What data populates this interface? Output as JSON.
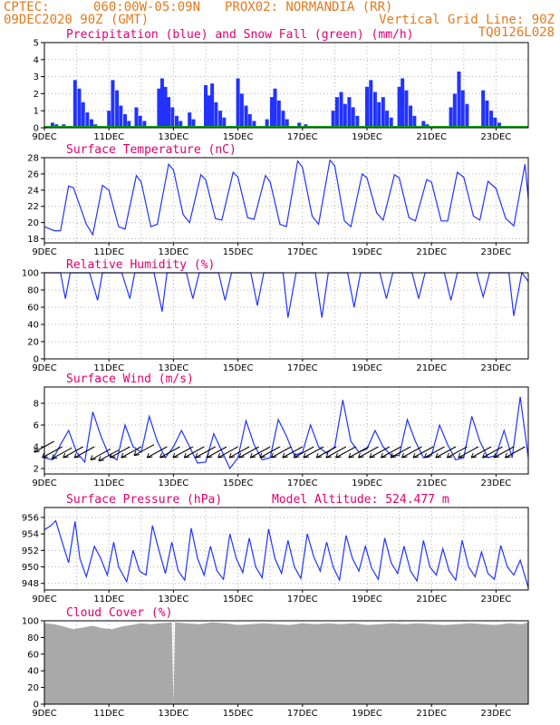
{
  "header": {
    "line1_left": "CPTEC:",
    "line1_coords": "060:00W-05:09N",
    "line1_station": "PROX02: NORMANDIA (RR)",
    "line2_left": "09DEC2020 90Z (GMT)",
    "line2_right": "Vertical Grid Line: 90Z",
    "line3_right": "TQ0126L028"
  },
  "colors": {
    "header": "#e07a1f",
    "title": "#e0006e",
    "line": "#2233ff",
    "snow": "#00aa00",
    "cloud": "#a9a9a9"
  },
  "chart_data": [
    {
      "id": "precip",
      "type": "bar",
      "title": "Precipitation (blue) and Snow Fall (green) (mm/h)",
      "ylim": [
        0,
        5
      ],
      "yticks": [
        "0",
        "1",
        "2",
        "3",
        "4",
        "5"
      ],
      "xticks": [
        "9DEC",
        "11DEC",
        "13DEC",
        "15DEC",
        "17DEC",
        "19DEC",
        "21DEC",
        "23DEC"
      ],
      "x_unit": "days since 09DEC 09Z (3-hourly)",
      "bars": [
        {
          "x": 0.25,
          "v": 0.3
        },
        {
          "x": 0.375,
          "v": 0.2
        },
        {
          "x": 0.6,
          "v": 0.2
        },
        {
          "x": 0.95,
          "v": 2.8
        },
        {
          "x": 1.08,
          "v": 2.3
        },
        {
          "x": 1.2,
          "v": 1.5
        },
        {
          "x": 1.33,
          "v": 0.9
        },
        {
          "x": 1.46,
          "v": 0.5
        },
        {
          "x": 1.58,
          "v": 0.2
        },
        {
          "x": 2.0,
          "v": 1.0
        },
        {
          "x": 2.12,
          "v": 2.8
        },
        {
          "x": 2.25,
          "v": 2.2
        },
        {
          "x": 2.37,
          "v": 1.3
        },
        {
          "x": 2.5,
          "v": 0.8
        },
        {
          "x": 2.62,
          "v": 0.4
        },
        {
          "x": 2.85,
          "v": 1.2
        },
        {
          "x": 2.97,
          "v": 0.7
        },
        {
          "x": 3.1,
          "v": 0.4
        },
        {
          "x": 3.55,
          "v": 2.3
        },
        {
          "x": 3.65,
          "v": 2.9
        },
        {
          "x": 3.75,
          "v": 2.4
        },
        {
          "x": 3.85,
          "v": 1.8
        },
        {
          "x": 3.97,
          "v": 1.2
        },
        {
          "x": 4.1,
          "v": 0.7
        },
        {
          "x": 4.22,
          "v": 0.4
        },
        {
          "x": 4.5,
          "v": 0.9
        },
        {
          "x": 4.62,
          "v": 0.5
        },
        {
          "x": 5.0,
          "v": 2.5
        },
        {
          "x": 5.1,
          "v": 1.9
        },
        {
          "x": 5.2,
          "v": 2.6
        },
        {
          "x": 5.32,
          "v": 1.5
        },
        {
          "x": 5.45,
          "v": 1.0
        },
        {
          "x": 5.57,
          "v": 0.6
        },
        {
          "x": 6.0,
          "v": 2.9
        },
        {
          "x": 6.12,
          "v": 2.0
        },
        {
          "x": 6.25,
          "v": 1.3
        },
        {
          "x": 6.37,
          "v": 0.8
        },
        {
          "x": 6.5,
          "v": 0.4
        },
        {
          "x": 6.9,
          "v": 0.5
        },
        {
          "x": 7.05,
          "v": 1.8
        },
        {
          "x": 7.15,
          "v": 2.3
        },
        {
          "x": 7.27,
          "v": 1.6
        },
        {
          "x": 7.4,
          "v": 1.0
        },
        {
          "x": 7.52,
          "v": 0.5
        },
        {
          "x": 7.9,
          "v": 0.3
        },
        {
          "x": 8.1,
          "v": 0.2
        },
        {
          "x": 8.95,
          "v": 1.0
        },
        {
          "x": 9.07,
          "v": 1.8
        },
        {
          "x": 9.2,
          "v": 2.1
        },
        {
          "x": 9.32,
          "v": 1.4
        },
        {
          "x": 9.45,
          "v": 1.8
        },
        {
          "x": 9.57,
          "v": 1.2
        },
        {
          "x": 9.7,
          "v": 0.7
        },
        {
          "x": 10.0,
          "v": 2.4
        },
        {
          "x": 10.12,
          "v": 2.8
        },
        {
          "x": 10.25,
          "v": 2.1
        },
        {
          "x": 10.37,
          "v": 1.5
        },
        {
          "x": 10.5,
          "v": 1.8
        },
        {
          "x": 10.62,
          "v": 1.0
        },
        {
          "x": 10.75,
          "v": 0.6
        },
        {
          "x": 11.0,
          "v": 2.4
        },
        {
          "x": 11.1,
          "v": 2.9
        },
        {
          "x": 11.22,
          "v": 2.2
        },
        {
          "x": 11.35,
          "v": 1.3
        },
        {
          "x": 11.47,
          "v": 0.7
        },
        {
          "x": 11.75,
          "v": 0.4
        },
        {
          "x": 11.87,
          "v": 0.2
        },
        {
          "x": 12.6,
          "v": 1.2
        },
        {
          "x": 12.72,
          "v": 2.0
        },
        {
          "x": 12.85,
          "v": 3.3
        },
        {
          "x": 12.97,
          "v": 2.2
        },
        {
          "x": 13.1,
          "v": 1.4
        },
        {
          "x": 13.6,
          "v": 2.2
        },
        {
          "x": 13.72,
          "v": 1.6
        },
        {
          "x": 13.85,
          "v": 1.0
        },
        {
          "x": 13.97,
          "v": 0.6
        },
        {
          "x": 14.1,
          "v": 0.3
        }
      ]
    },
    {
      "id": "temp",
      "type": "line",
      "title": "Surface Temperature (nC)",
      "ylim": [
        17.5,
        28
      ],
      "yticks": [
        "18",
        "20",
        "22",
        "24",
        "26",
        "28"
      ],
      "xticks": [
        "9DEC",
        "11DEC",
        "13DEC",
        "15DEC",
        "17DEC",
        "19DEC",
        "21DEC",
        "23DEC"
      ],
      "x": [
        0,
        0.3,
        0.5,
        0.75,
        0.9,
        1.3,
        1.5,
        1.8,
        2.0,
        2.3,
        2.5,
        2.85,
        3.0,
        3.3,
        3.5,
        3.85,
        4.0,
        4.3,
        4.5,
        4.85,
        5.0,
        5.3,
        5.5,
        5.85,
        6.0,
        6.3,
        6.5,
        6.85,
        7.0,
        7.3,
        7.5,
        7.85,
        8.0,
        8.3,
        8.5,
        8.85,
        9.0,
        9.3,
        9.5,
        9.85,
        10.0,
        10.3,
        10.5,
        10.85,
        11.0,
        11.3,
        11.5,
        11.85,
        12.0,
        12.3,
        12.5,
        12.8,
        13.0,
        13.3,
        13.5,
        13.75,
        14.0,
        14.3,
        14.55,
        14.9,
        15.0
      ],
      "values": [
        19.5,
        19.0,
        19.0,
        24.5,
        24.3,
        19.8,
        18.5,
        24.6,
        24.0,
        19.5,
        19.2,
        25.8,
        25.0,
        19.5,
        19.8,
        27.2,
        26.5,
        21.0,
        20.0,
        25.9,
        25.3,
        20.5,
        20.3,
        26.2,
        25.6,
        20.6,
        20.4,
        25.8,
        25.0,
        19.8,
        19.5,
        27.6,
        26.8,
        20.8,
        19.8,
        27.7,
        27.0,
        20.2,
        19.5,
        26.0,
        25.5,
        21.2,
        20.3,
        25.9,
        25.5,
        20.6,
        20.2,
        25.3,
        25.0,
        20.2,
        20.2,
        26.2,
        25.6,
        20.8,
        20.3,
        25.1,
        24.2,
        20.5,
        19.6,
        27.2,
        23.0
      ]
    },
    {
      "id": "rh",
      "type": "line",
      "title": "Relative Humidity (%)",
      "ylim": [
        0,
        100
      ],
      "yticks": [
        "0",
        "20",
        "40",
        "60",
        "80",
        "100"
      ],
      "xticks": [
        "9DEC",
        "11DEC",
        "13DEC",
        "15DEC",
        "17DEC",
        "19DEC",
        "21DEC",
        "23DEC"
      ],
      "x": [
        0,
        0.5,
        0.65,
        0.8,
        1.0,
        1.4,
        1.65,
        1.8,
        2.0,
        2.4,
        2.65,
        2.8,
        3.0,
        3.4,
        3.65,
        3.8,
        4.0,
        4.4,
        4.6,
        4.8,
        5.0,
        5.4,
        5.6,
        5.8,
        6.0,
        6.4,
        6.6,
        6.8,
        7.0,
        7.4,
        7.55,
        7.8,
        8.0,
        8.4,
        8.6,
        8.8,
        9.0,
        9.4,
        9.6,
        9.8,
        10.0,
        10.4,
        10.6,
        10.8,
        11.0,
        11.4,
        11.6,
        11.8,
        12.0,
        12.4,
        12.6,
        12.8,
        13.0,
        13.4,
        13.6,
        13.8,
        14.0,
        14.4,
        14.55,
        14.8,
        15.0
      ],
      "values": [
        100,
        100,
        70,
        100,
        100,
        100,
        68,
        100,
        100,
        100,
        70,
        100,
        100,
        100,
        55,
        100,
        100,
        100,
        70,
        100,
        100,
        100,
        68,
        100,
        100,
        100,
        62,
        100,
        100,
        100,
        48,
        100,
        100,
        100,
        48,
        100,
        100,
        100,
        60,
        100,
        100,
        100,
        70,
        100,
        100,
        100,
        70,
        100,
        100,
        100,
        68,
        100,
        100,
        100,
        72,
        100,
        100,
        100,
        50,
        100,
        90
      ]
    },
    {
      "id": "wind",
      "type": "line",
      "title": "Surface Wind (m/s)",
      "ylim": [
        1.5,
        9.5
      ],
      "yticks": [
        "2",
        "4",
        "6",
        "8"
      ],
      "xticks": [
        "9DEC",
        "11DEC",
        "13DEC",
        "15DEC",
        "17DEC",
        "19DEC",
        "21DEC",
        "23DEC"
      ],
      "x": [
        0,
        0.25,
        0.5,
        0.75,
        1.0,
        1.25,
        1.5,
        1.75,
        2.0,
        2.25,
        2.5,
        2.75,
        3.0,
        3.25,
        3.5,
        3.75,
        4.0,
        4.25,
        4.5,
        4.75,
        5.0,
        5.25,
        5.5,
        5.75,
        6.0,
        6.25,
        6.5,
        6.75,
        7.0,
        7.25,
        7.5,
        7.75,
        8.0,
        8.25,
        8.5,
        8.75,
        9.0,
        9.25,
        9.5,
        9.75,
        10.0,
        10.25,
        10.5,
        10.75,
        11.0,
        11.25,
        11.5,
        11.75,
        12.0,
        12.25,
        12.5,
        12.75,
        13.0,
        13.25,
        13.5,
        13.75,
        14.0,
        14.25,
        14.5,
        14.75,
        15.0
      ],
      "values": [
        3.0,
        2.8,
        4.2,
        5.5,
        3.5,
        2.6,
        7.2,
        5.0,
        3.2,
        2.8,
        6.0,
        4.0,
        3.5,
        6.8,
        4.5,
        3.0,
        4.0,
        5.5,
        4.0,
        2.5,
        2.6,
        5.2,
        3.6,
        2.0,
        3.0,
        6.4,
        4.2,
        2.8,
        3.0,
        6.5,
        5.0,
        3.2,
        3.5,
        6.0,
        4.0,
        3.4,
        4.0,
        8.3,
        4.5,
        3.5,
        3.8,
        5.5,
        4.0,
        3.2,
        3.2,
        6.5,
        4.5,
        3.0,
        3.2,
        6.0,
        4.2,
        2.8,
        3.0,
        6.8,
        4.5,
        3.0,
        3.2,
        5.5,
        3.0,
        8.6,
        3.0
      ],
      "arrows_x": [
        0.3,
        0.55,
        0.85,
        1.2,
        1.55,
        2.05,
        2.3,
        2.65,
        3.0,
        3.4,
        3.8,
        4.2,
        4.6,
        4.95,
        5.3,
        5.65,
        6.0,
        6.35,
        6.65,
        7.0,
        7.3,
        7.65,
        8.0,
        8.35,
        8.65,
        9.05,
        9.35,
        9.65,
        10.05,
        10.35,
        10.7,
        11.05,
        11.35,
        11.7,
        12.05,
        12.4,
        12.75,
        13.1,
        13.45,
        13.85,
        14.2,
        14.55,
        14.9
      ],
      "arrows_y": [
        4.5,
        4.0,
        3.9,
        4.0,
        4.0,
        3.8,
        3.7,
        4.0,
        4.0,
        4.2,
        4.0,
        4.0,
        4.0,
        4.0,
        4.0,
        4.0,
        4.0,
        4.0,
        4.0,
        4.0,
        4.0,
        4.0,
        4.0,
        4.0,
        4.0,
        4.0,
        4.0,
        4.0,
        4.0,
        4.0,
        4.0,
        4.0,
        4.0,
        4.0,
        4.0,
        4.0,
        4.0,
        4.0,
        4.0,
        4.0,
        4.0,
        4.0,
        4.0
      ]
    },
    {
      "id": "pres",
      "type": "line",
      "title": "Surface Pressure (hPa)",
      "annotation": "Model Altitude: 524.477 m",
      "ylim": [
        947.2,
        957.2
      ],
      "yticks": [
        "948",
        "950",
        "952",
        "954",
        "956"
      ],
      "xticks": [
        "9DEC",
        "11DEC",
        "13DEC",
        "15DEC",
        "17DEC",
        "19DEC",
        "21DEC",
        "23DEC"
      ],
      "x": [
        0,
        0.2,
        0.35,
        0.55,
        0.75,
        0.95,
        1.1,
        1.3,
        1.55,
        1.75,
        1.95,
        2.15,
        2.3,
        2.55,
        2.75,
        2.95,
        3.15,
        3.35,
        3.55,
        3.75,
        3.95,
        4.15,
        4.35,
        4.55,
        4.75,
        4.95,
        5.15,
        5.35,
        5.55,
        5.75,
        5.95,
        6.15,
        6.35,
        6.55,
        6.75,
        6.95,
        7.15,
        7.35,
        7.55,
        7.75,
        7.95,
        8.15,
        8.35,
        8.55,
        8.75,
        8.95,
        9.15,
        9.35,
        9.55,
        9.75,
        9.95,
        10.15,
        10.35,
        10.55,
        10.75,
        10.95,
        11.15,
        11.35,
        11.55,
        11.75,
        11.95,
        12.15,
        12.35,
        12.55,
        12.75,
        12.95,
        13.15,
        13.35,
        13.55,
        13.75,
        13.95,
        14.15,
        14.35,
        14.55,
        14.75,
        15.0
      ],
      "values": [
        954.5,
        955.0,
        955.6,
        953.0,
        950.5,
        955.5,
        951.0,
        948.8,
        952.5,
        951.0,
        949.0,
        953.0,
        950.0,
        948.2,
        952.0,
        949.5,
        949.0,
        955.0,
        952.0,
        949.2,
        953.0,
        949.5,
        948.4,
        954.7,
        951.0,
        949.0,
        952.5,
        949.5,
        948.5,
        954.0,
        951.0,
        949.3,
        953.5,
        950.0,
        948.7,
        954.6,
        951.0,
        949.2,
        953.2,
        950.0,
        948.6,
        954.0,
        951.2,
        949.5,
        953.0,
        950.0,
        948.4,
        953.8,
        951.0,
        949.5,
        952.5,
        949.8,
        948.5,
        953.5,
        950.5,
        949.2,
        952.5,
        949.5,
        948.3,
        953.2,
        950.0,
        949.0,
        952.2,
        949.5,
        948.4,
        953.2,
        950.0,
        948.8,
        951.8,
        949.2,
        948.5,
        952.6,
        950.0,
        949.0,
        950.8,
        947.5
      ]
    },
    {
      "id": "cloud",
      "type": "area",
      "title": "Cloud Cover (%)",
      "ylim": [
        0,
        100
      ],
      "yticks": [
        "0",
        "20",
        "40",
        "60",
        "80",
        "100"
      ],
      "xticks": [
        "9DEC",
        "11DEC",
        "13DEC",
        "15DEC",
        "17DEC",
        "19DEC",
        "21DEC",
        "23DEC"
      ],
      "x": [
        0,
        0.3,
        0.6,
        0.9,
        1.2,
        1.5,
        1.8,
        2.1,
        2.4,
        2.7,
        3.0,
        3.3,
        3.6,
        3.95,
        4.0,
        4.05,
        4.4,
        4.8,
        5.2,
        5.6,
        6.0,
        6.4,
        6.8,
        7.2,
        7.6,
        8.0,
        8.4,
        8.8,
        9.2,
        9.6,
        10.0,
        10.4,
        10.8,
        11.2,
        11.6,
        12.0,
        12.4,
        12.8,
        13.2,
        13.6,
        14.0,
        14.4,
        14.8,
        15.0
      ],
      "values": [
        97,
        96,
        93,
        90,
        92,
        94,
        91,
        90,
        93,
        95,
        97,
        96,
        97,
        98,
        0,
        98,
        97,
        96,
        98,
        97,
        95,
        96,
        97,
        96,
        95,
        97,
        96,
        97,
        96,
        97,
        95,
        96,
        97,
        96,
        97,
        96,
        95,
        96,
        97,
        96,
        95,
        97,
        96,
        98
      ]
    }
  ]
}
